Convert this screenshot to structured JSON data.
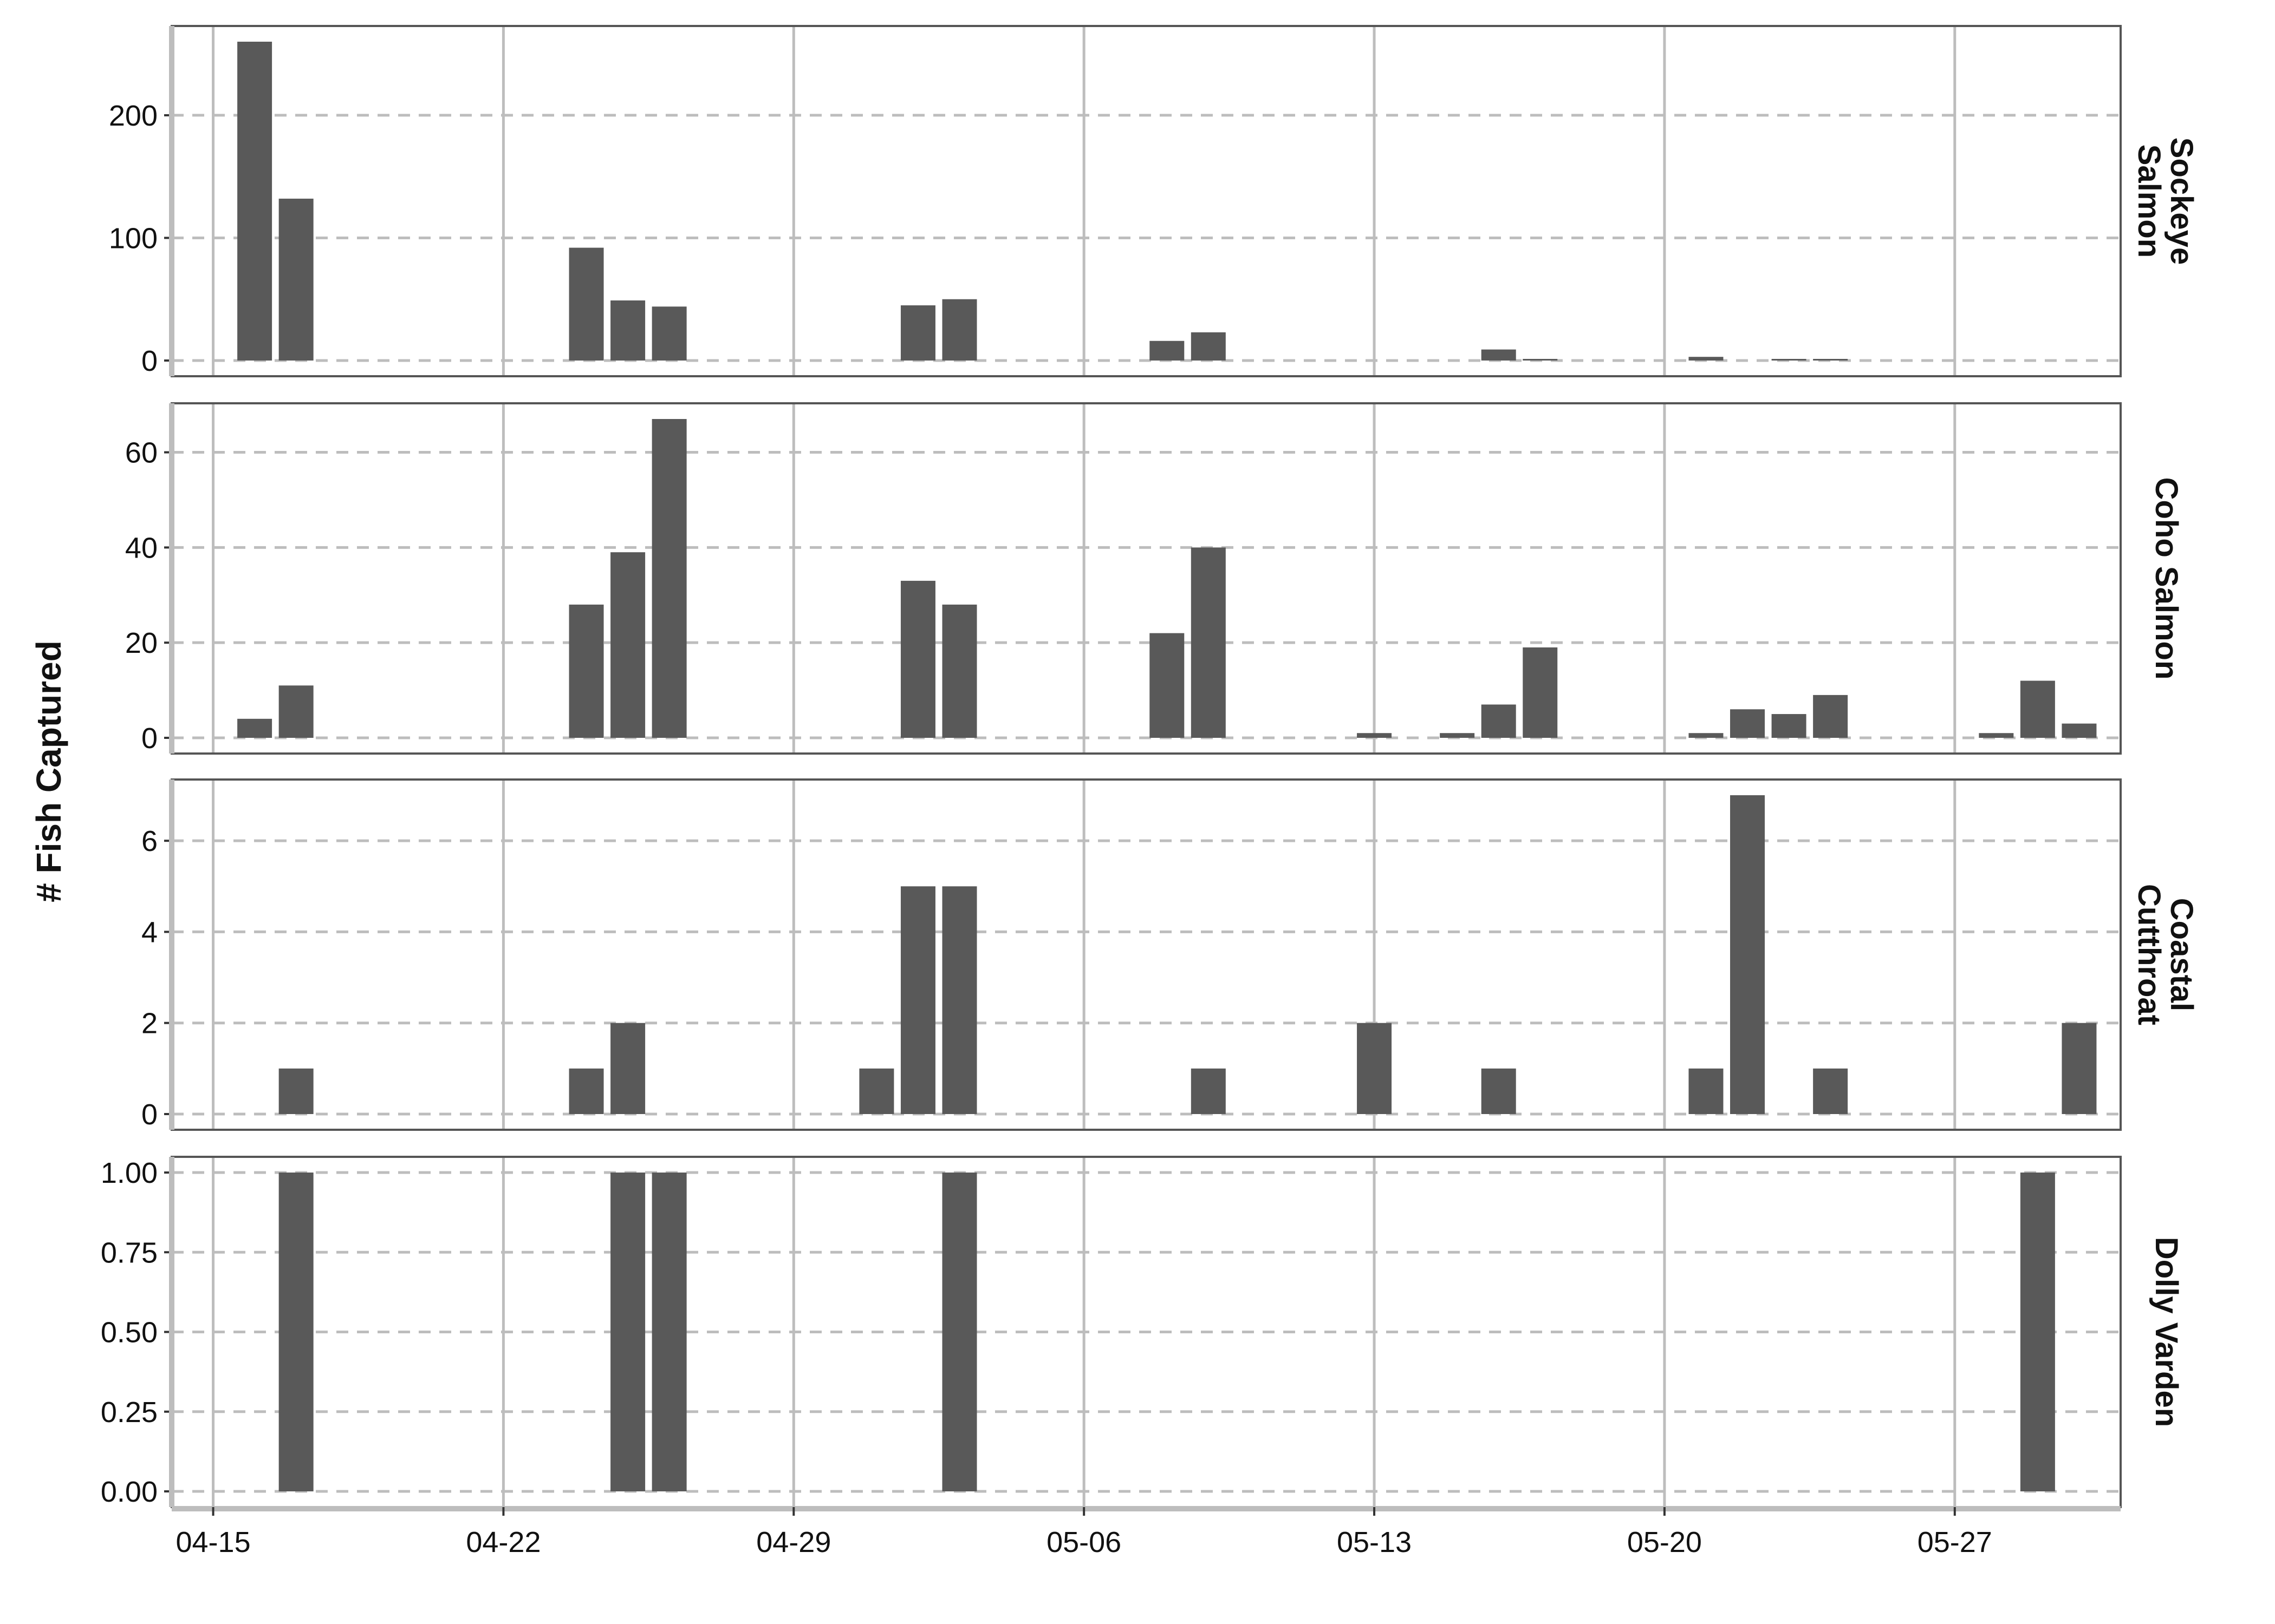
{
  "chart_data": {
    "type": "bar",
    "ylabel": "# Fish Captured",
    "xlabel": "",
    "x_ticks": [
      "04-15",
      "04-22",
      "04-29",
      "05-06",
      "05-13",
      "05-20",
      "05-27"
    ],
    "x_tick_dates": [
      "04-15",
      "04-22",
      "04-29",
      "05-06",
      "05-13",
      "05-20",
      "05-27"
    ],
    "xlim": [
      "04-14",
      "05-31"
    ],
    "grid": true,
    "panels": [
      {
        "facet_label": "Sockeye Salmon",
        "ylim": [
          0,
          260
        ],
        "y_ticks": [
          "0",
          "100",
          "200"
        ],
        "y_tick_values": [
          0,
          100,
          200
        ],
        "bars": [
          {
            "date": "04-16",
            "value": 260
          },
          {
            "date": "04-17",
            "value": 132
          },
          {
            "date": "04-24",
            "value": 92
          },
          {
            "date": "04-25",
            "value": 49
          },
          {
            "date": "04-26",
            "value": 44
          },
          {
            "date": "05-02",
            "value": 45
          },
          {
            "date": "05-03",
            "value": 50
          },
          {
            "date": "05-08",
            "value": 16
          },
          {
            "date": "05-09",
            "value": 23
          },
          {
            "date": "05-16",
            "value": 9
          },
          {
            "date": "05-17",
            "value": 1
          },
          {
            "date": "05-21",
            "value": 3
          },
          {
            "date": "05-23",
            "value": 1
          },
          {
            "date": "05-24",
            "value": 1
          }
        ]
      },
      {
        "facet_label": "Coho Salmon",
        "ylim": [
          0,
          67
        ],
        "y_ticks": [
          "0",
          "20",
          "40",
          "60"
        ],
        "y_tick_values": [
          0,
          20,
          40,
          60
        ],
        "bars": [
          {
            "date": "04-16",
            "value": 4
          },
          {
            "date": "04-17",
            "value": 11
          },
          {
            "date": "04-24",
            "value": 28
          },
          {
            "date": "04-25",
            "value": 39
          },
          {
            "date": "04-26",
            "value": 67
          },
          {
            "date": "05-02",
            "value": 33
          },
          {
            "date": "05-03",
            "value": 28
          },
          {
            "date": "05-08",
            "value": 22
          },
          {
            "date": "05-09",
            "value": 40
          },
          {
            "date": "05-13",
            "value": 1
          },
          {
            "date": "05-15",
            "value": 1
          },
          {
            "date": "05-16",
            "value": 7
          },
          {
            "date": "05-17",
            "value": 19
          },
          {
            "date": "05-21",
            "value": 1
          },
          {
            "date": "05-22",
            "value": 6
          },
          {
            "date": "05-23",
            "value": 5
          },
          {
            "date": "05-24",
            "value": 9
          },
          {
            "date": "05-28",
            "value": 1
          },
          {
            "date": "05-29",
            "value": 12
          },
          {
            "date": "05-30",
            "value": 3
          }
        ]
      },
      {
        "facet_label": "Coastal Cutthroat",
        "ylim": [
          0,
          7
        ],
        "y_ticks": [
          "0",
          "2",
          "4",
          "6"
        ],
        "y_tick_values": [
          0,
          2,
          4,
          6
        ],
        "bars": [
          {
            "date": "04-17",
            "value": 1
          },
          {
            "date": "04-24",
            "value": 1
          },
          {
            "date": "04-25",
            "value": 2
          },
          {
            "date": "05-01",
            "value": 1
          },
          {
            "date": "05-02",
            "value": 5
          },
          {
            "date": "05-03",
            "value": 5
          },
          {
            "date": "05-09",
            "value": 1
          },
          {
            "date": "05-13",
            "value": 2
          },
          {
            "date": "05-16",
            "value": 1
          },
          {
            "date": "05-21",
            "value": 1
          },
          {
            "date": "05-22",
            "value": 7
          },
          {
            "date": "05-24",
            "value": 1
          },
          {
            "date": "05-30",
            "value": 2
          }
        ]
      },
      {
        "facet_label": "Dolly Varden",
        "ylim": [
          0,
          1
        ],
        "y_ticks": [
          "0.00",
          "0.25",
          "0.50",
          "0.75",
          "1.00"
        ],
        "y_tick_values": [
          0,
          0.25,
          0.5,
          0.75,
          1
        ],
        "bars": [
          {
            "date": "04-17",
            "value": 1
          },
          {
            "date": "04-25",
            "value": 1
          },
          {
            "date": "04-26",
            "value": 1
          },
          {
            "date": "05-03",
            "value": 1
          },
          {
            "date": "05-29",
            "value": 1
          }
        ]
      }
    ],
    "bar_color": "#595959",
    "grid_color": "#bdbdbd",
    "frame_color": "#555555"
  }
}
